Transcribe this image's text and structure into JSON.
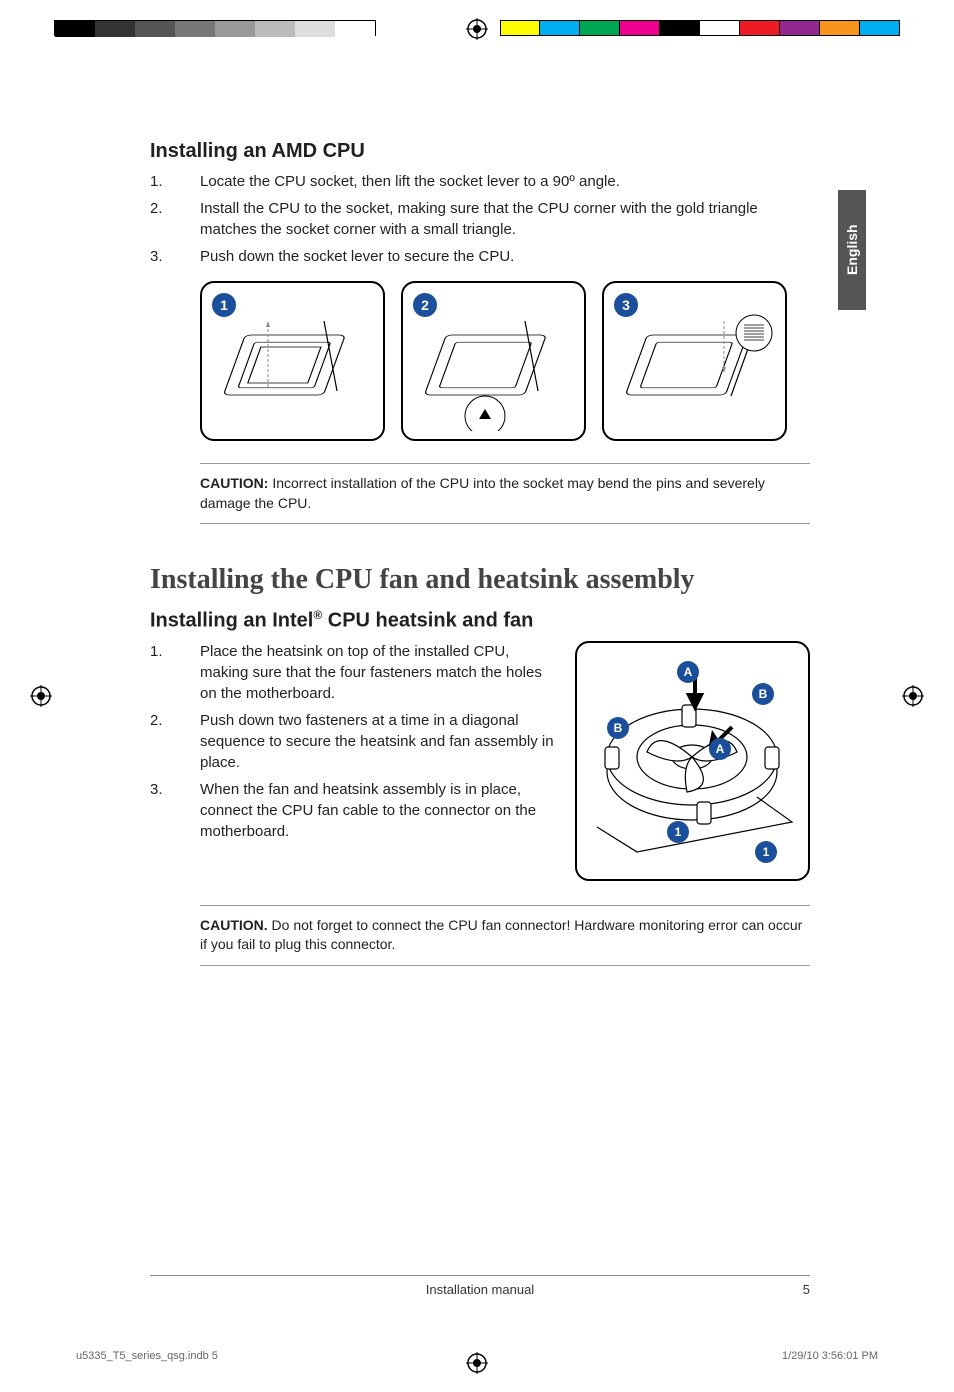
{
  "print_marks": {
    "gray_levels": [
      "#000000",
      "#333333",
      "#555555",
      "#777777",
      "#999999",
      "#bbbbbb",
      "#dddddd",
      "#ffffff"
    ],
    "color_bar": [
      "#ffff00",
      "#00aeef",
      "#00a651",
      "#ec008c",
      "#000000",
      "#ffffff",
      "#ed1c24",
      "#92278f",
      "#f7941d",
      "#00adef"
    ]
  },
  "lang_tab": "English",
  "section_amd": {
    "heading": "Installing an AMD CPU",
    "steps": [
      "Locate the CPU socket, then lift the socket lever to a 90º angle.",
      "Install the CPU to the socket, making sure that the CPU corner with the gold triangle matches the socket corner with a small triangle.",
      "Push down the socket lever to secure the CPU."
    ],
    "diagram_badges": [
      "1",
      "2",
      "3"
    ],
    "caution_label": "CAUTION:",
    "caution_text": " Incorrect installation of the CPU into the socket may bend the pins and severely damage the CPU."
  },
  "section_heatsink": {
    "heading": "Installing the CPU fan and heatsink assembly",
    "sub_heading_pre": "Installing an Intel",
    "sub_heading_sup": "®",
    "sub_heading_post": " CPU heatsink and fan",
    "steps": [
      "Place the heatsink on top of the installed CPU, making sure that the four fasteners match the holes on the motherboard.",
      "Push down two fasteners at a time in a diagonal sequence to secure the heatsink and fan assembly in place.",
      "When the fan and heatsink assembly is in place, connect the CPU fan cable to the connector on the motherboard."
    ],
    "fan_callouts": {
      "A1": "A",
      "A2": "A",
      "B1": "B",
      "B2": "B",
      "one1": "1",
      "one2": "1"
    },
    "caution_label": "CAUTION.",
    "caution_text": " Do not forget to connect the CPU fan connector! Hardware monitoring error can occur if you fail to plug this connector."
  },
  "footer": {
    "center": "Installation manual",
    "page_number": "5"
  },
  "indb_footer": {
    "left": "u5335_T5_series_qsg.indb   5",
    "right": "1/29/10   3:56:01 PM"
  },
  "colors": {
    "badge": "#1b4f9c",
    "text": "#231f20",
    "rule": "#999999",
    "tab": "#555555"
  }
}
